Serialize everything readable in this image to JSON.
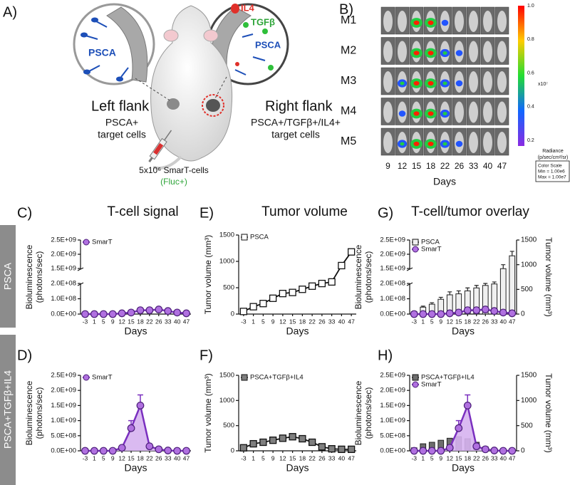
{
  "panel_a": {
    "letter": "A)",
    "left_marker": "PSCA",
    "right_markers": [
      "IL4",
      "TGFβ",
      "PSCA"
    ],
    "left_flank": {
      "title": "Left flank",
      "lines": [
        "PSCA+",
        "target cells"
      ]
    },
    "right_flank": {
      "title": "Right flank",
      "lines": [
        "PSCA+/TGFβ+/IL4+",
        "target cells"
      ]
    },
    "injection": {
      "dose": "5x10⁶ SmarT-cells",
      "reporter": "(Fluc+)"
    }
  },
  "panel_b": {
    "letter": "B)",
    "mice": [
      "M1",
      "M2",
      "M3",
      "M4",
      "M5"
    ],
    "days": [
      "9",
      "12",
      "15",
      "18",
      "22",
      "26",
      "33",
      "40",
      "47"
    ],
    "x_label": "Days",
    "scale_labels": [
      "1.0",
      "0.8",
      "0.6",
      "0.4",
      "0.2"
    ],
    "scale_unit": "x10⁷",
    "radiance": [
      "Radiance",
      "(p/sec/cm²/sr)"
    ],
    "scale_box": [
      "Color Scale",
      "Min = 1.00e6",
      "Max = 1.00e7"
    ]
  },
  "row_labels": [
    "PSCA",
    "PSCA+TGFβ+IL4"
  ],
  "chart_data": [
    {
      "panel": "C)",
      "type": "line",
      "title": "T-cell signal",
      "x_label": "Days",
      "y_label": [
        "Bioluminescence",
        "(photons/sec)"
      ],
      "categories": [
        "-3",
        "1",
        "5",
        "9",
        "12",
        "15",
        "18",
        "22",
        "26",
        "33",
        "40",
        "47"
      ],
      "ylim": [
        0,
        2500000000.0
      ],
      "y_break": [
        200000000.0,
        1500000000.0
      ],
      "yticks": [
        {
          "value": 0,
          "label": "0.0E+00"
        },
        {
          "value": 100000000.0,
          "label": "1.0E+08"
        },
        {
          "value": 200000000.0,
          "label": "2.0E+08"
        },
        {
          "value": 1500000000.0,
          "label": "1.5E+09"
        },
        {
          "value": 2000000000.0,
          "label": "2.0E+09"
        },
        {
          "value": 2500000000.0,
          "label": "2.5E+09"
        }
      ],
      "legend": "upper left",
      "series": [
        {
          "name": "SmarT",
          "kind": "line",
          "marker": "circle",
          "color": "#b070e0",
          "values": [
            0,
            0,
            0,
            0,
            5000000.0,
            10000000.0,
            25000000.0,
            25000000.0,
            30000000.0,
            20000000.0,
            10000000.0,
            5000000.0
          ]
        }
      ]
    },
    {
      "panel": "E)",
      "type": "line",
      "title": "Tumor volume",
      "x_label": "Days",
      "y_label": [
        "Tumor volume (mm³)"
      ],
      "categories": [
        "-3",
        "1",
        "5",
        "9",
        "12",
        "15",
        "18",
        "22",
        "26",
        "33",
        "40",
        "47"
      ],
      "ylim": [
        0,
        1500
      ],
      "yticks": [
        0,
        500,
        1000,
        1500
      ],
      "legend": "upper left",
      "series": [
        {
          "name": "PSCA",
          "kind": "line",
          "marker": "square",
          "color": "#ffffff",
          "values": [
            50,
            140,
            200,
            300,
            390,
            410,
            470,
            530,
            580,
            610,
            920,
            1180
          ]
        }
      ]
    },
    {
      "panel": "G)",
      "type": "combo",
      "title": "T-cell/tumor overlay",
      "x_label": "Days",
      "y_label": [
        "Bioluminescence",
        "(photons/sec)"
      ],
      "y2_label": "Tumor volume (mm³)",
      "categories": [
        "-3",
        "1",
        "5",
        "9",
        "12",
        "15",
        "18",
        "22",
        "26",
        "33",
        "40",
        "47"
      ],
      "ylim": [
        0,
        2500000000.0
      ],
      "y_break": [
        200000000.0,
        1500000000.0
      ],
      "yticks": [
        {
          "value": 0,
          "label": "0.0E+00"
        },
        {
          "value": 100000000.0,
          "label": "1.0E+08"
        },
        {
          "value": 200000000.0,
          "label": "2.0E+08"
        },
        {
          "value": 1500000000.0,
          "label": "1.5E+09"
        },
        {
          "value": 2000000000.0,
          "label": "2.0E+09"
        },
        {
          "value": 2500000000.0,
          "label": "2.5E+09"
        }
      ],
      "y2lim": [
        0,
        1500
      ],
      "y2ticks": [
        0,
        500,
        1000,
        1500
      ],
      "legend": "upper left",
      "series": [
        {
          "name": "PSCA",
          "kind": "bar",
          "axis": "y2",
          "marker": "square",
          "color": "#f0f0f0",
          "values": [
            50,
            140,
            200,
            300,
            390,
            410,
            470,
            530,
            580,
            610,
            920,
            1180
          ],
          "errors": [
            10,
            20,
            30,
            40,
            60,
            60,
            60,
            50,
            40,
            40,
            80,
            90
          ]
        },
        {
          "name": "SmarT",
          "kind": "line",
          "marker": "circle",
          "color": "#b070e0",
          "values": [
            0,
            0,
            0,
            0,
            5000000.0,
            10000000.0,
            25000000.0,
            25000000.0,
            30000000.0,
            20000000.0,
            10000000.0,
            5000000.0
          ]
        }
      ]
    },
    {
      "panel": "D)",
      "type": "line",
      "x_label": "Days",
      "y_label": [
        "Bioluminescence",
        "(photons/sec)"
      ],
      "categories": [
        "-3",
        "1",
        "5",
        "9",
        "12",
        "15",
        "18",
        "22",
        "26",
        "33",
        "40",
        "47"
      ],
      "ylim": [
        0,
        2500000000.0
      ],
      "yticks": [
        {
          "value": 0,
          "label": "0.0E+00"
        },
        {
          "value": 500000000.0,
          "label": "5.0E+08"
        },
        {
          "value": 1000000000.0,
          "label": "1.0E+09"
        },
        {
          "value": 1500000000.0,
          "label": "1.5E+09"
        },
        {
          "value": 2000000000.0,
          "label": "2.0E+09"
        },
        {
          "value": 2500000000.0,
          "label": "2.5E+09"
        }
      ],
      "legend": "upper left",
      "series": [
        {
          "name": "SmarT",
          "kind": "line",
          "marker": "circle",
          "color": "#b070e0",
          "area": true,
          "values": [
            0,
            0,
            0,
            0,
            100000000.0,
            750000000.0,
            1500000000.0,
            150000000.0,
            50000000.0,
            10000000.0,
            0,
            0
          ],
          "errors": [
            null,
            null,
            null,
            null,
            null,
            250000000.0,
            350000000.0,
            null,
            null,
            null,
            null,
            null
          ]
        }
      ]
    },
    {
      "panel": "F)",
      "type": "line",
      "x_label": "Days",
      "y_label": [
        "Tumor volume (mm³)"
      ],
      "categories": [
        "-3",
        "1",
        "5",
        "9",
        "12",
        "15",
        "18",
        "22",
        "26",
        "33",
        "40",
        "47"
      ],
      "ylim": [
        0,
        1500
      ],
      "yticks": [
        0,
        500,
        1000,
        1500
      ],
      "legend": "upper left",
      "series": [
        {
          "name": "PSCA+TGFβ+IL4",
          "kind": "line",
          "marker": "square",
          "color": "#7f7f7f",
          "values": [
            60,
            140,
            170,
            210,
            250,
            280,
            240,
            170,
            80,
            40,
            30,
            30
          ]
        }
      ]
    },
    {
      "panel": "H)",
      "type": "combo",
      "x_label": "Days",
      "y_label": [
        "Bioluminescence",
        "(photons/sec)"
      ],
      "y2_label": "Tumor volume (mm³)",
      "categories": [
        "-3",
        "1",
        "5",
        "9",
        "12",
        "15",
        "18",
        "22",
        "26",
        "33",
        "40",
        "47"
      ],
      "ylim": [
        0,
        2500000000.0
      ],
      "yticks": [
        {
          "value": 0,
          "label": "0.0E+00"
        },
        {
          "value": 500000000.0,
          "label": "5.0E+08"
        },
        {
          "value": 1000000000.0,
          "label": "1.0E+09"
        },
        {
          "value": 1500000000.0,
          "label": "1.5E+09"
        },
        {
          "value": 2000000000.0,
          "label": "2.0E+09"
        },
        {
          "value": 2500000000.0,
          "label": "2.5E+09"
        }
      ],
      "y2lim": [
        0,
        1500
      ],
      "y2ticks": [
        0,
        500,
        1000,
        1500
      ],
      "legend": "upper left",
      "series": [
        {
          "name": "PSCA+TGFβ+IL4",
          "kind": "bar",
          "axis": "y2",
          "marker": "square",
          "color": "#6e6e6e",
          "values": [
            60,
            140,
            170,
            210,
            250,
            280,
            240,
            170,
            80,
            40,
            30,
            30
          ]
        },
        {
          "name": "SmarT",
          "kind": "line",
          "marker": "circle",
          "color": "#b070e0",
          "area": true,
          "values": [
            0,
            0,
            0,
            0,
            100000000.0,
            750000000.0,
            1500000000.0,
            150000000.0,
            50000000.0,
            10000000.0,
            0,
            0
          ],
          "errors": [
            null,
            null,
            null,
            null,
            null,
            250000000.0,
            350000000.0,
            null,
            null,
            null,
            null,
            null
          ]
        }
      ]
    }
  ]
}
